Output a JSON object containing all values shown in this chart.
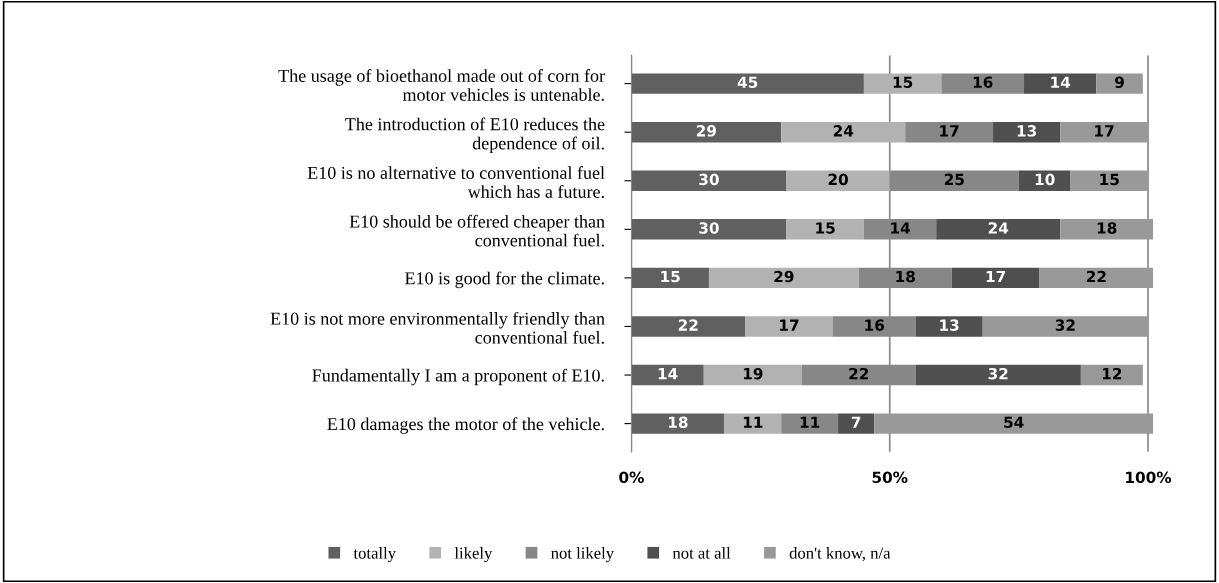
{
  "chart_data": {
    "type": "bar",
    "orientation": "horizontal",
    "stacked": true,
    "data_labels": true,
    "categories": [
      "The usage of bioethanol made out of corn for\nmotor vehicles is untenable.",
      "The introduction of E10 reduces the\ndependence of oil.",
      "E10 is no alternative to conventional fuel\nwhich has a future.",
      "E10 should be offered cheaper than\nconventional fuel.",
      "E10 is good for the climate.",
      "E10 is not more environmentally friendly than\nconventional fuel.",
      "Fundamentally I am a proponent of E10.",
      "E10 damages the motor of the vehicle."
    ],
    "series": [
      {
        "name": "totally",
        "color": "#606060",
        "values": [
          45,
          29,
          30,
          30,
          15,
          22,
          14,
          18
        ]
      },
      {
        "name": "likely",
        "color": "#b2b2b2",
        "values": [
          15,
          24,
          20,
          15,
          29,
          17,
          19,
          11
        ]
      },
      {
        "name": "not likely",
        "color": "#878787",
        "values": [
          16,
          17,
          25,
          14,
          18,
          16,
          22,
          11
        ]
      },
      {
        "name": "not at all",
        "color": "#4f4f4f",
        "values": [
          14,
          13,
          10,
          24,
          17,
          13,
          32,
          7
        ]
      },
      {
        "name": "don't know, n/a",
        "color": "#999999",
        "values": [
          9,
          17,
          15,
          18,
          22,
          32,
          12,
          54
        ]
      }
    ],
    "xlim": [
      0,
      101
    ],
    "xticks": [
      {
        "value": 0,
        "label": "0%"
      },
      {
        "value": 50,
        "label": "50%"
      },
      {
        "value": 100,
        "label": "100%"
      }
    ],
    "grid": "x",
    "legend": "bottom"
  }
}
